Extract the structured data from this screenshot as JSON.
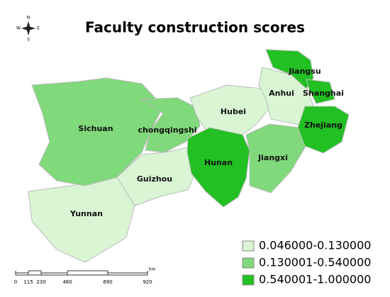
{
  "title": "Faculty construction scores",
  "compass": {
    "north": "N",
    "south": "S",
    "east": "E",
    "west": "W"
  },
  "legend": [
    {
      "label": "0.046000-0.130000",
      "color": "#d9f5d4"
    },
    {
      "label": "0.130001-0.540000",
      "color": "#80d97b"
    },
    {
      "label": "0.540001-1.000000",
      "color": "#22c022"
    }
  ],
  "regions": [
    {
      "name": "Yunnan",
      "color": "#d9f5d4"
    },
    {
      "name": "Sichuan",
      "color": "#80d97b"
    },
    {
      "name": "chongqingshi",
      "color": "#80d97b"
    },
    {
      "name": "Guizhou",
      "color": "#d9f5d4"
    },
    {
      "name": "Hubei",
      "color": "#d9f5d4"
    },
    {
      "name": "Hunan",
      "color": "#22c022"
    },
    {
      "name": "Jiangxi",
      "color": "#80d97b"
    },
    {
      "name": "Anhui",
      "color": "#d9f5d4"
    },
    {
      "name": "Jiangsu",
      "color": "#22c022"
    },
    {
      "name": "Shanghai",
      "color": "#22c022"
    },
    {
      "name": "Zhejiang",
      "color": "#22c022"
    }
  ],
  "scale_bar": {
    "labels": [
      "0",
      "115",
      "230",
      "460",
      "690",
      "920"
    ],
    "unit": "km"
  }
}
